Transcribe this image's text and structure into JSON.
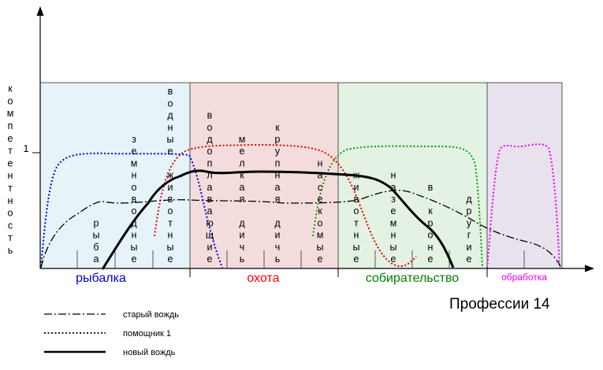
{
  "y_axis_label": "компетентность",
  "y_tick_label": "1",
  "x_axis_caption": "Профессии 14",
  "categories": [
    {
      "label": "рыбалка",
      "color": "#0000cc",
      "fill": "#e6f4f9"
    },
    {
      "label": "охота",
      "color": "#ff0000",
      "fill": "#f5dcdc"
    },
    {
      "label": "собирательство",
      "color": "#008000",
      "fill": "#e3f2e3"
    },
    {
      "label": "обработка",
      "color": "#ee00ee",
      "fill": "#e8e2ef"
    }
  ],
  "subcategories": [
    {
      "label": "рыба"
    },
    {
      "label": "земноводные"
    },
    {
      "label": "водные животные"
    },
    {
      "label": "водоплавающие"
    },
    {
      "label": "мелкая дичь"
    },
    {
      "label": "крупная дичь"
    },
    {
      "label": "насекомые"
    },
    {
      "label": "животные"
    },
    {
      "label": "наземные"
    },
    {
      "label": "в кроне"
    },
    {
      "label": "другие"
    }
  ],
  "legend": [
    {
      "label": "старый вождь",
      "style": "dash-dot"
    },
    {
      "label": "помощник 1",
      "style": "dotted"
    },
    {
      "label": "новый вождь",
      "style": "solid"
    }
  ]
}
